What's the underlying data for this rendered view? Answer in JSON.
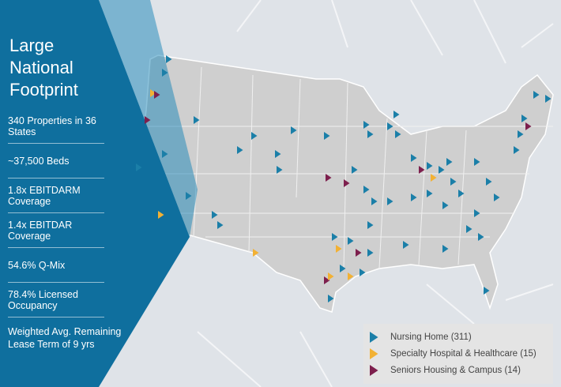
{
  "title_lines": [
    "Large",
    "National",
    "Footprint"
  ],
  "stats": [
    "340 Properties in 36 States",
    "~37,500 Beds",
    "1.8x EBITDARM Coverage",
    "1.4x EBITDAR Coverage",
    "54.6% Q-Mix",
    "78.4% Licensed Occupancy",
    "Weighted Avg. Remaining Lease Term of 9 yrs"
  ],
  "legend": [
    {
      "label": "Nursing Home (311)",
      "color": "#1b7fa8"
    },
    {
      "label": "Specialty Hospital & Healthcare (15)",
      "color": "#f2b134"
    },
    {
      "label": "Seniors Housing & Campus (14)",
      "color": "#7d1f4d"
    }
  ]
}
